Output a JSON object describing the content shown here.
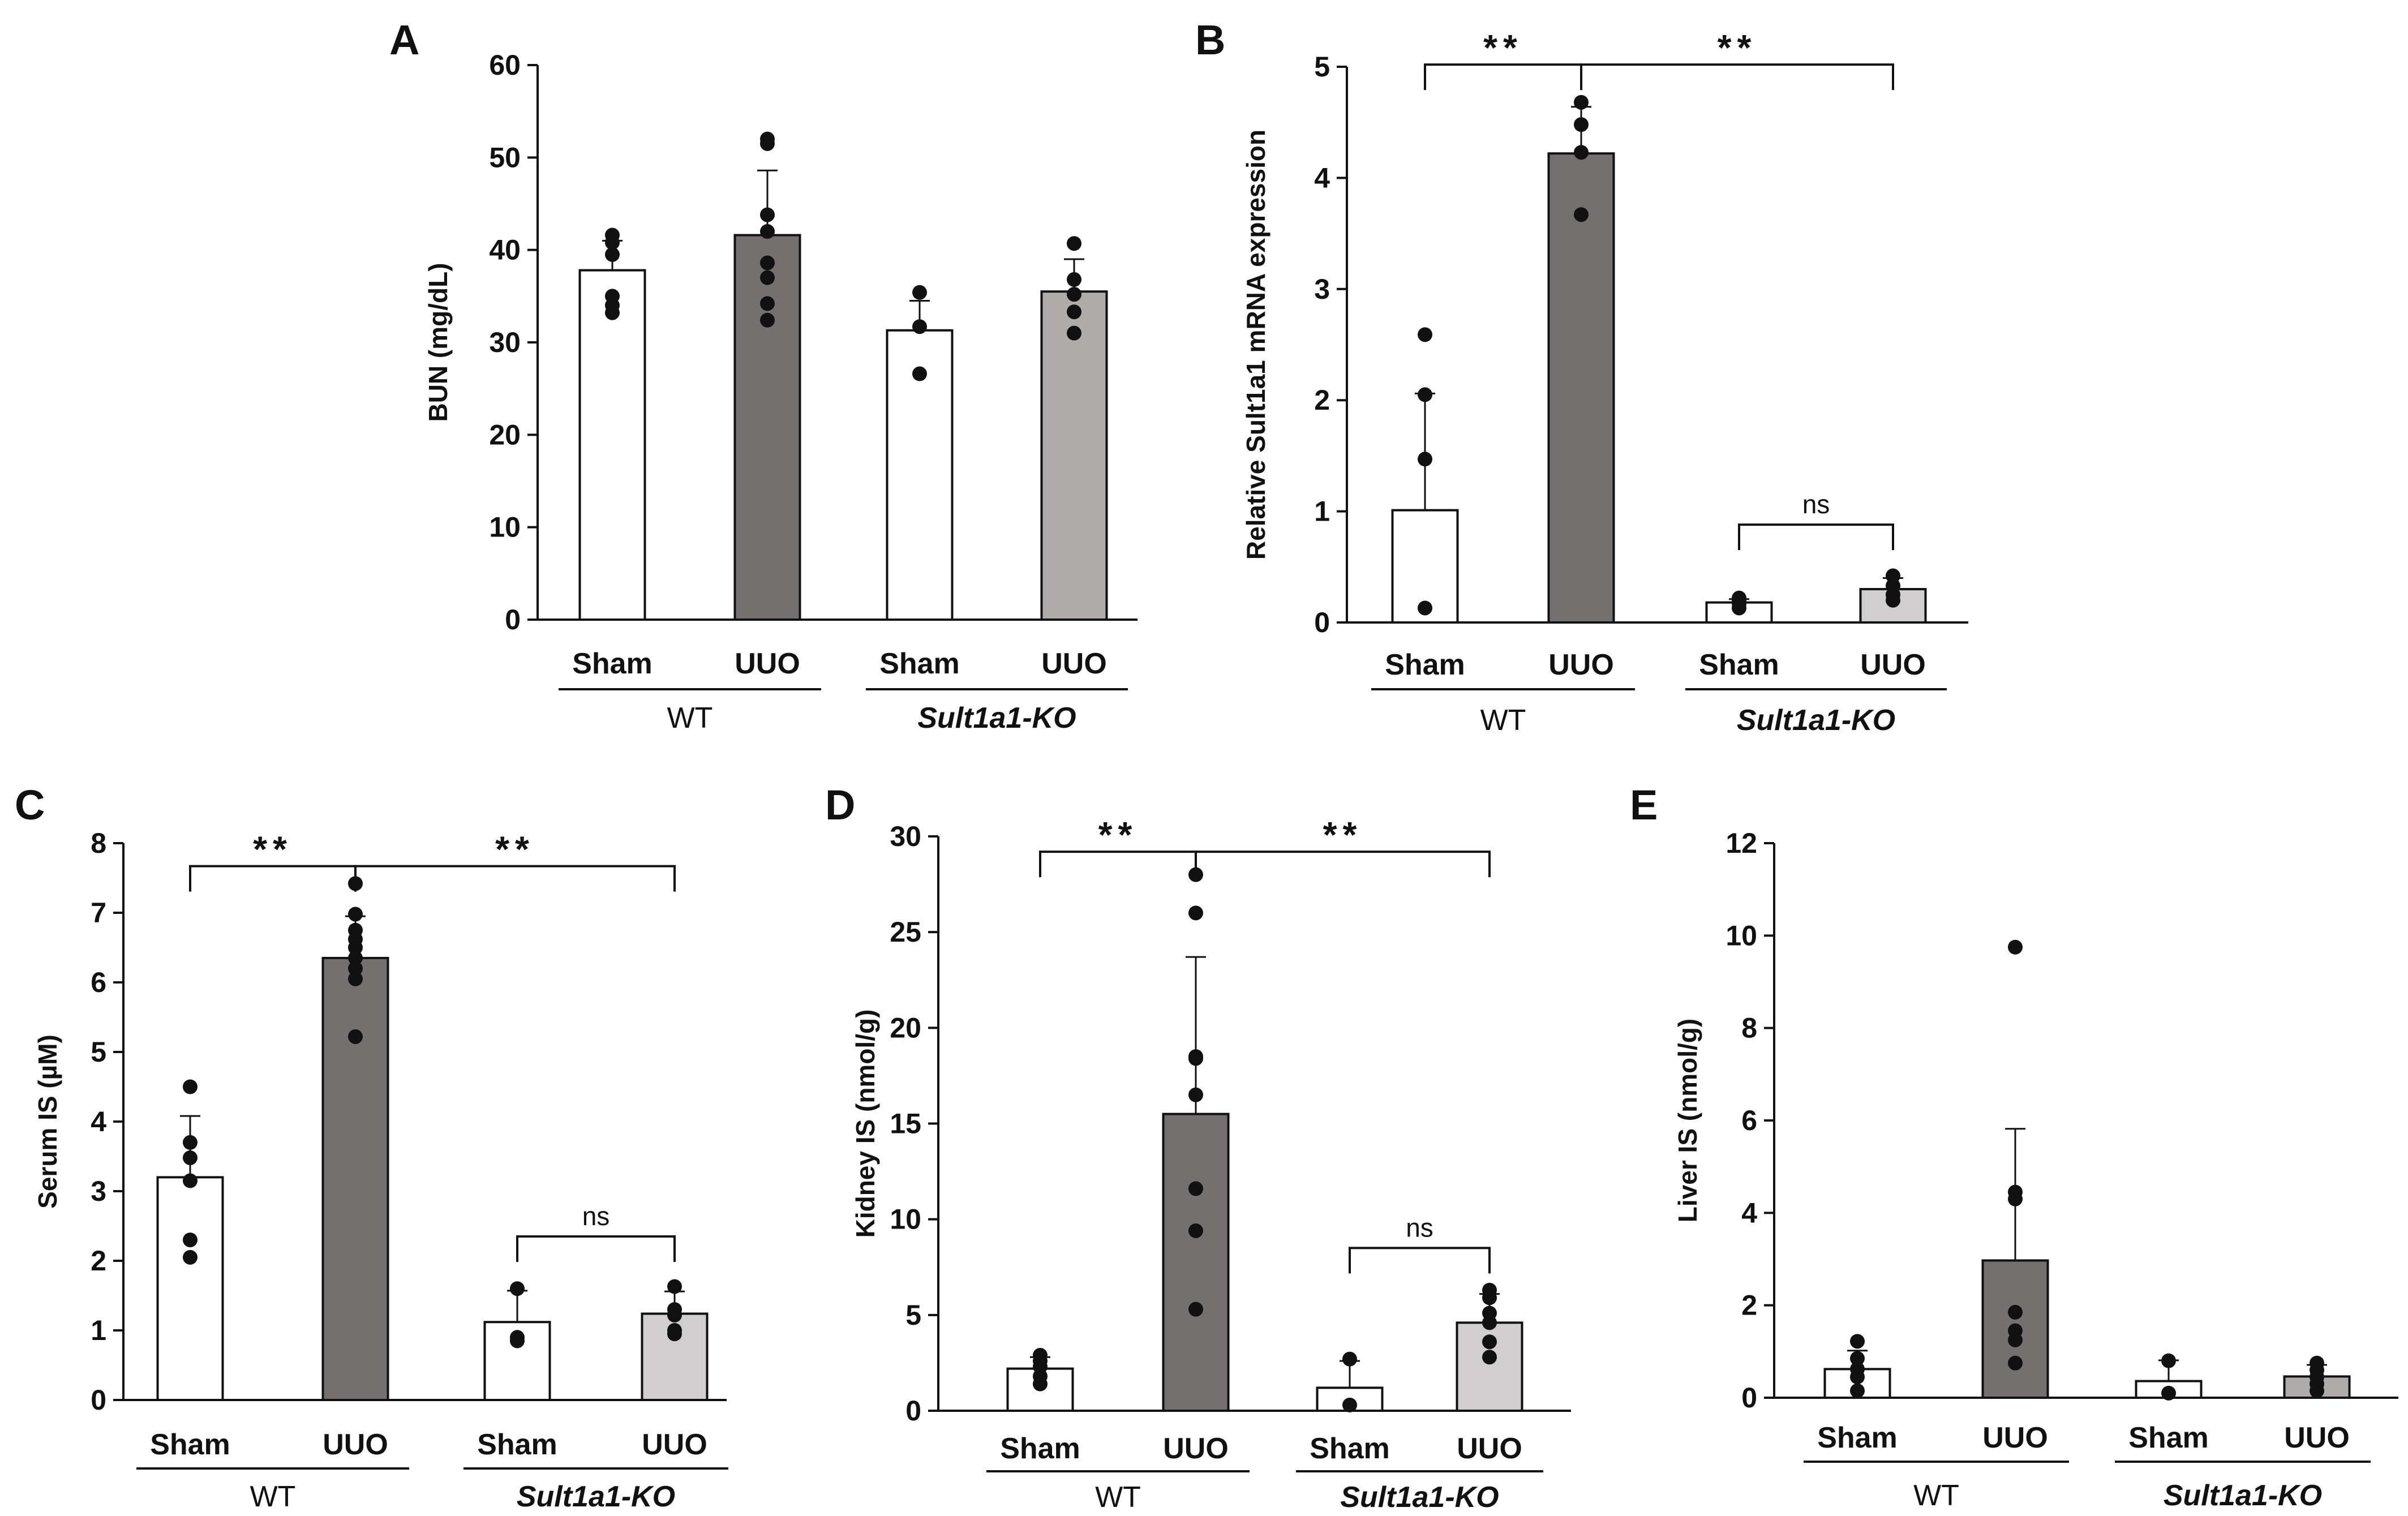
{
  "figure": {
    "panel_letters": [
      "A",
      "B",
      "C",
      "D",
      "E"
    ]
  },
  "colors": {
    "white_bar": "#ffffff",
    "dark_bar": "#747070",
    "medium_bar": "#afabab",
    "light_bar": "#d0cece",
    "ink": "#111111"
  },
  "chart_data": [
    {
      "panel": "A",
      "type": "bar",
      "title": "",
      "xlabel": "",
      "ylabel": "BUN (mg/dL)",
      "ylim": [
        0,
        60
      ],
      "yticks": [
        0,
        10,
        20,
        30,
        40,
        50,
        60
      ],
      "categories": [
        "Sham",
        "UUO",
        "Sham",
        "UUO"
      ],
      "groups": [
        {
          "label": "WT",
          "italic": false,
          "span": [
            0,
            1
          ]
        },
        {
          "label": "Sult1a1-KO",
          "italic": true,
          "span": [
            2,
            3
          ]
        }
      ],
      "values": [
        37.8,
        41.6,
        31.3,
        35.5
      ],
      "errors": [
        3.2,
        7.0,
        3.2,
        3.5
      ],
      "points": [
        [
          33.2,
          34.0,
          35.0,
          39.5,
          40.8,
          41.6
        ],
        [
          32.4,
          34.2,
          37.0,
          38.6,
          42.0,
          43.8,
          51.5,
          52.0
        ],
        [
          26.6,
          31.7,
          35.4
        ],
        [
          31.0,
          33.3,
          35.2,
          36.8,
          40.7
        ]
      ],
      "bar_colors": [
        "#ffffff",
        "#747070",
        "#ffffff",
        "#afabab"
      ],
      "significance": []
    },
    {
      "panel": "B",
      "type": "bar",
      "title": "",
      "xlabel": "",
      "ylabel": "Relative Sult1a1 mRNA expression",
      "ylim": [
        0,
        5
      ],
      "yticks": [
        0,
        1,
        2,
        3,
        4,
        5
      ],
      "categories": [
        "Sham",
        "UUO",
        "Sham",
        "UUO"
      ],
      "groups": [
        {
          "label": "WT",
          "italic": false,
          "span": [
            0,
            1
          ]
        },
        {
          "label": "Sult1a1-KO",
          "italic": true,
          "span": [
            2,
            3
          ]
        }
      ],
      "values": [
        1.01,
        4.22,
        0.18,
        0.3
      ],
      "errors": [
        1.05,
        0.42,
        0.03,
        0.1
      ],
      "points": [
        [
          0.13,
          1.47,
          2.05,
          2.59
        ],
        [
          3.67,
          4.23,
          4.48,
          4.68
        ],
        [
          0.13,
          0.17,
          0.2,
          0.22
        ],
        [
          0.2,
          0.25,
          0.33,
          0.42
        ]
      ],
      "bar_colors": [
        "#ffffff",
        "#747070",
        "#ffffff",
        "#d0cece"
      ],
      "significance": [
        {
          "from": 0,
          "to": 1,
          "level": 5.02,
          "label": "**"
        },
        {
          "from": 1,
          "to": 3,
          "level": 5.02,
          "label": "**"
        },
        {
          "from": 2,
          "to": 3,
          "level": 0.88,
          "label": "ns"
        }
      ]
    },
    {
      "panel": "C",
      "type": "bar",
      "title": "",
      "xlabel": "",
      "ylabel": "Serum IS (µM)",
      "ylim": [
        0,
        8
      ],
      "yticks": [
        0,
        1,
        2,
        3,
        4,
        5,
        6,
        7,
        8
      ],
      "categories": [
        "Sham",
        "UUO",
        "Sham",
        "UUO"
      ],
      "groups": [
        {
          "label": "WT",
          "italic": false,
          "span": [
            0,
            1
          ]
        },
        {
          "label": "Sult1a1-KO",
          "italic": true,
          "span": [
            2,
            3
          ]
        }
      ],
      "values": [
        3.2,
        6.35,
        1.12,
        1.24
      ],
      "errors": [
        0.88,
        0.6,
        0.45,
        0.32
      ],
      "points": [
        [
          2.05,
          2.3,
          3.15,
          3.48,
          3.7,
          4.5
        ],
        [
          5.22,
          6.05,
          6.2,
          6.35,
          6.5,
          6.62,
          6.75,
          6.98,
          7.42
        ],
        [
          0.85,
          0.9,
          1.6
        ],
        [
          0.95,
          1.0,
          1.22,
          1.3,
          1.63
        ]
      ],
      "bar_colors": [
        "#ffffff",
        "#747070",
        "#ffffff",
        "#d0cece"
      ],
      "significance": [
        {
          "from": 0,
          "to": 1,
          "level": 7.67,
          "label": "**"
        },
        {
          "from": 1,
          "to": 3,
          "level": 7.67,
          "label": "**"
        },
        {
          "from": 2,
          "to": 3,
          "level": 2.35,
          "label": "ns"
        }
      ]
    },
    {
      "panel": "D",
      "type": "bar",
      "title": "",
      "xlabel": "",
      "ylabel": "Kidney IS (nmol/g)",
      "ylim": [
        0,
        30
      ],
      "yticks": [
        0,
        5,
        10,
        15,
        20,
        25,
        30
      ],
      "categories": [
        "Sham",
        "UUO",
        "Sham",
        "UUO"
      ],
      "groups": [
        {
          "label": "WT",
          "italic": false,
          "span": [
            0,
            1
          ]
        },
        {
          "label": "Sult1a1-KO",
          "italic": true,
          "span": [
            2,
            3
          ]
        }
      ],
      "values": [
        2.2,
        15.5,
        1.2,
        4.6
      ],
      "errors": [
        0.6,
        8.2,
        1.4,
        1.5
      ],
      "points": [
        [
          1.4,
          1.8,
          2.3,
          2.6,
          2.9
        ],
        [
          5.3,
          9.4,
          11.6,
          16.5,
          18.4,
          18.5,
          26.0,
          28.0
        ],
        [
          0.3,
          2.7
        ],
        [
          2.8,
          3.6,
          4.6,
          5.1,
          5.9,
          6.3
        ]
      ],
      "bar_colors": [
        "#ffffff",
        "#747070",
        "#ffffff",
        "#d0cece"
      ],
      "significance": [
        {
          "from": 0,
          "to": 1,
          "level": 29.2,
          "label": "**"
        },
        {
          "from": 1,
          "to": 3,
          "level": 29.2,
          "label": "**"
        },
        {
          "from": 2,
          "to": 3,
          "level": 8.5,
          "label": "ns"
        }
      ]
    },
    {
      "panel": "E",
      "type": "bar",
      "title": "",
      "xlabel": "",
      "ylabel": "Liver IS (nmol/g)",
      "ylim": [
        0,
        12
      ],
      "yticks": [
        0,
        2,
        4,
        6,
        8,
        10,
        12
      ],
      "categories": [
        "Sham",
        "UUO",
        "Sham",
        "UUO"
      ],
      "groups": [
        {
          "label": "WT",
          "italic": false,
          "span": [
            0,
            1
          ]
        },
        {
          "label": "Sult1a1-KO",
          "italic": true,
          "span": [
            2,
            3
          ]
        }
      ],
      "values": [
        0.62,
        2.97,
        0.36,
        0.46
      ],
      "errors": [
        0.4,
        2.85,
        0.45,
        0.25
      ],
      "points": [
        [
          0.15,
          0.45,
          0.62,
          0.85,
          1.22
        ],
        [
          0.75,
          1.25,
          1.45,
          1.85,
          4.3,
          4.45,
          9.75
        ],
        [
          0.1,
          0.8
        ],
        [
          0.15,
          0.3,
          0.45,
          0.6,
          0.75
        ]
      ],
      "bar_colors": [
        "#ffffff",
        "#747070",
        "#ffffff",
        "#afabab"
      ],
      "significance": []
    }
  ]
}
